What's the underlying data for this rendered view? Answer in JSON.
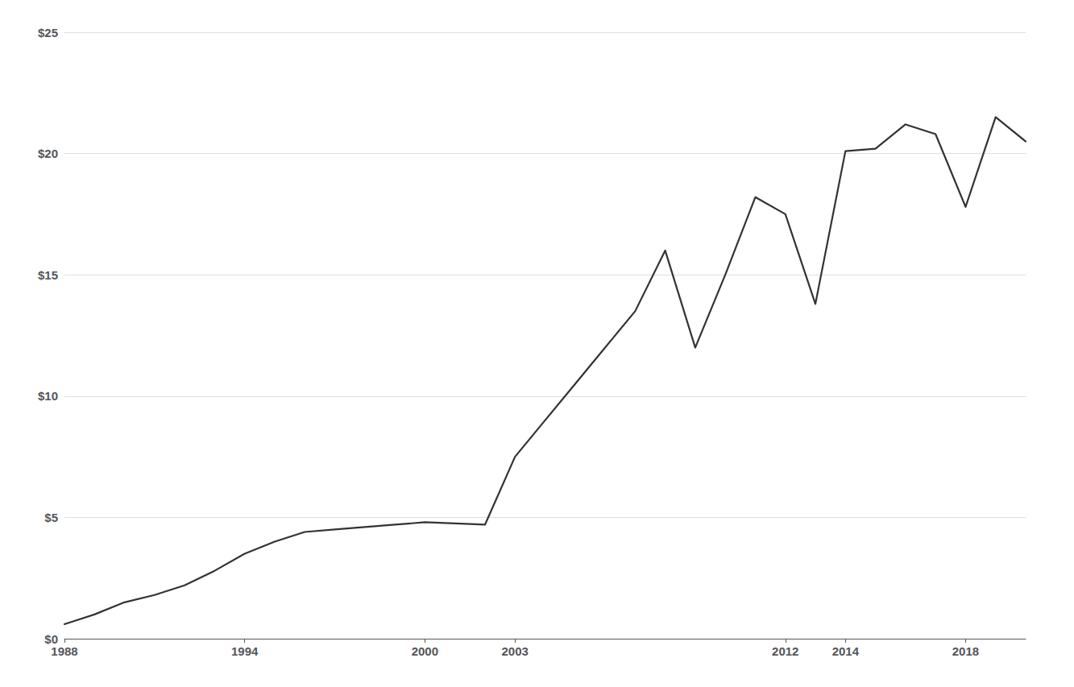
{
  "chart_data": {
    "type": "line",
    "x": [
      1988,
      1989,
      1990,
      1991,
      1992,
      1993,
      1994,
      1995,
      1996,
      1997,
      1998,
      1999,
      2000,
      2001,
      2002,
      2003,
      2004,
      2005,
      2006,
      2007,
      2008,
      2009,
      2010,
      2011,
      2012,
      2013,
      2014,
      2015,
      2016,
      2017,
      2018,
      2019,
      2020
    ],
    "values": [
      0.6,
      1.0,
      1.5,
      1.8,
      2.2,
      2.8,
      3.5,
      4.0,
      4.4,
      4.5,
      4.6,
      4.7,
      4.8,
      4.75,
      4.7,
      7.5,
      9.0,
      10.5,
      12.0,
      13.5,
      16.0,
      12.0,
      15.0,
      18.2,
      17.5,
      13.8,
      20.1,
      20.2,
      21.2,
      20.8,
      17.8,
      21.5,
      20.5
    ],
    "color": "#333333",
    "xlim": [
      1988,
      2020
    ],
    "xticks": [
      1988,
      1994,
      2000,
      2003,
      2012,
      2014,
      2018
    ],
    "ylim": [
      0,
      25
    ],
    "yticks": [
      {
        "value": 0,
        "label": "$0"
      },
      {
        "value": 5,
        "label": "$5"
      },
      {
        "value": 10,
        "label": "$10"
      },
      {
        "value": 15,
        "label": "$15"
      },
      {
        "value": 20,
        "label": "$20"
      },
      {
        "value": 25,
        "label": "$25"
      }
    ],
    "grid": true
  }
}
